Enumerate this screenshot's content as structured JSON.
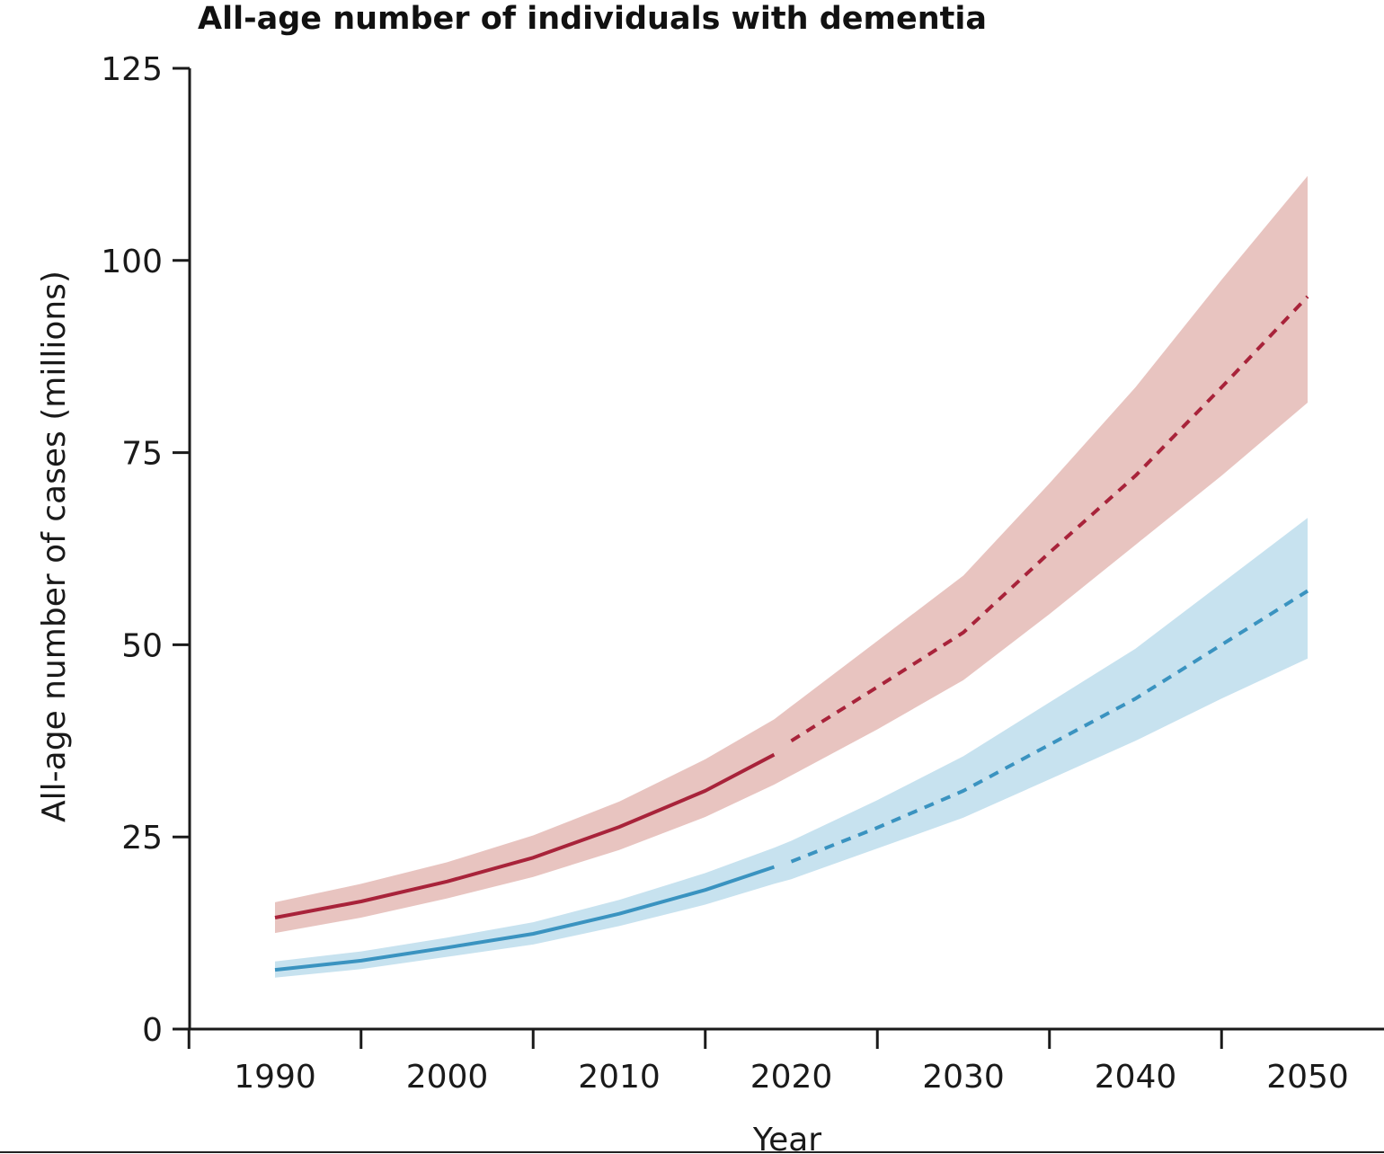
{
  "chart_data": {
    "type": "line",
    "title": "All-age number of individuals with dementia",
    "xlabel": "Year",
    "ylabel": "All-age number of cases (millions)",
    "xlim": [
      1988,
      2052
    ],
    "ylim": [
      0,
      125
    ],
    "x_ticks": [
      1990,
      2000,
      2010,
      2020,
      2030,
      2040,
      2050
    ],
    "y_ticks": [
      0,
      25,
      50,
      75,
      100,
      125
    ],
    "grid": false,
    "legend": "none",
    "series": [
      {
        "color": "#a8233a",
        "band_color": "#e8c4c0",
        "observed": {
          "x": [
            1990,
            1995,
            2000,
            2005,
            2010,
            2015,
            2019
          ],
          "y": [
            14.5,
            16.6,
            19.2,
            22.3,
            26.3,
            31.0,
            35.7
          ],
          "lower": [
            12.5,
            14.5,
            17.0,
            19.8,
            23.3,
            27.6,
            31.8
          ],
          "upper": [
            16.5,
            18.9,
            21.7,
            25.2,
            29.6,
            35.1,
            40.3
          ]
        },
        "forecast": {
          "x": [
            2019,
            2020,
            2025,
            2030,
            2035,
            2040,
            2045,
            2050
          ],
          "y": [
            35.7,
            37.5,
            44.5,
            51.6,
            62.0,
            72.0,
            83.5,
            95.3
          ],
          "lower": [
            31.8,
            33.0,
            39.0,
            45.4,
            54.0,
            63.0,
            72.0,
            81.5
          ],
          "upper": [
            40.3,
            42.0,
            50.5,
            59.0,
            71.0,
            83.5,
            97.5,
            111.0
          ]
        }
      },
      {
        "color": "#3a93c0",
        "band_color": "#c7e2ef",
        "observed": {
          "x": [
            1990,
            1995,
            2000,
            2005,
            2010,
            2015,
            2019
          ],
          "y": [
            7.7,
            8.9,
            10.6,
            12.4,
            15.0,
            18.1,
            21.1
          ],
          "lower": [
            6.7,
            7.8,
            9.4,
            11.0,
            13.4,
            16.2,
            18.9
          ],
          "upper": [
            8.8,
            10.1,
            11.9,
            13.9,
            16.8,
            20.3,
            23.6
          ]
        },
        "forecast": {
          "x": [
            2019,
            2020,
            2025,
            2030,
            2035,
            2040,
            2045,
            2050
          ],
          "y": [
            21.1,
            21.8,
            26.2,
            31.0,
            37.0,
            43.0,
            50.0,
            57.0
          ],
          "lower": [
            18.9,
            19.5,
            23.5,
            27.5,
            32.5,
            37.5,
            43.0,
            48.2
          ],
          "upper": [
            23.6,
            24.5,
            29.8,
            35.5,
            42.5,
            49.5,
            58.0,
            66.5
          ]
        }
      }
    ]
  }
}
